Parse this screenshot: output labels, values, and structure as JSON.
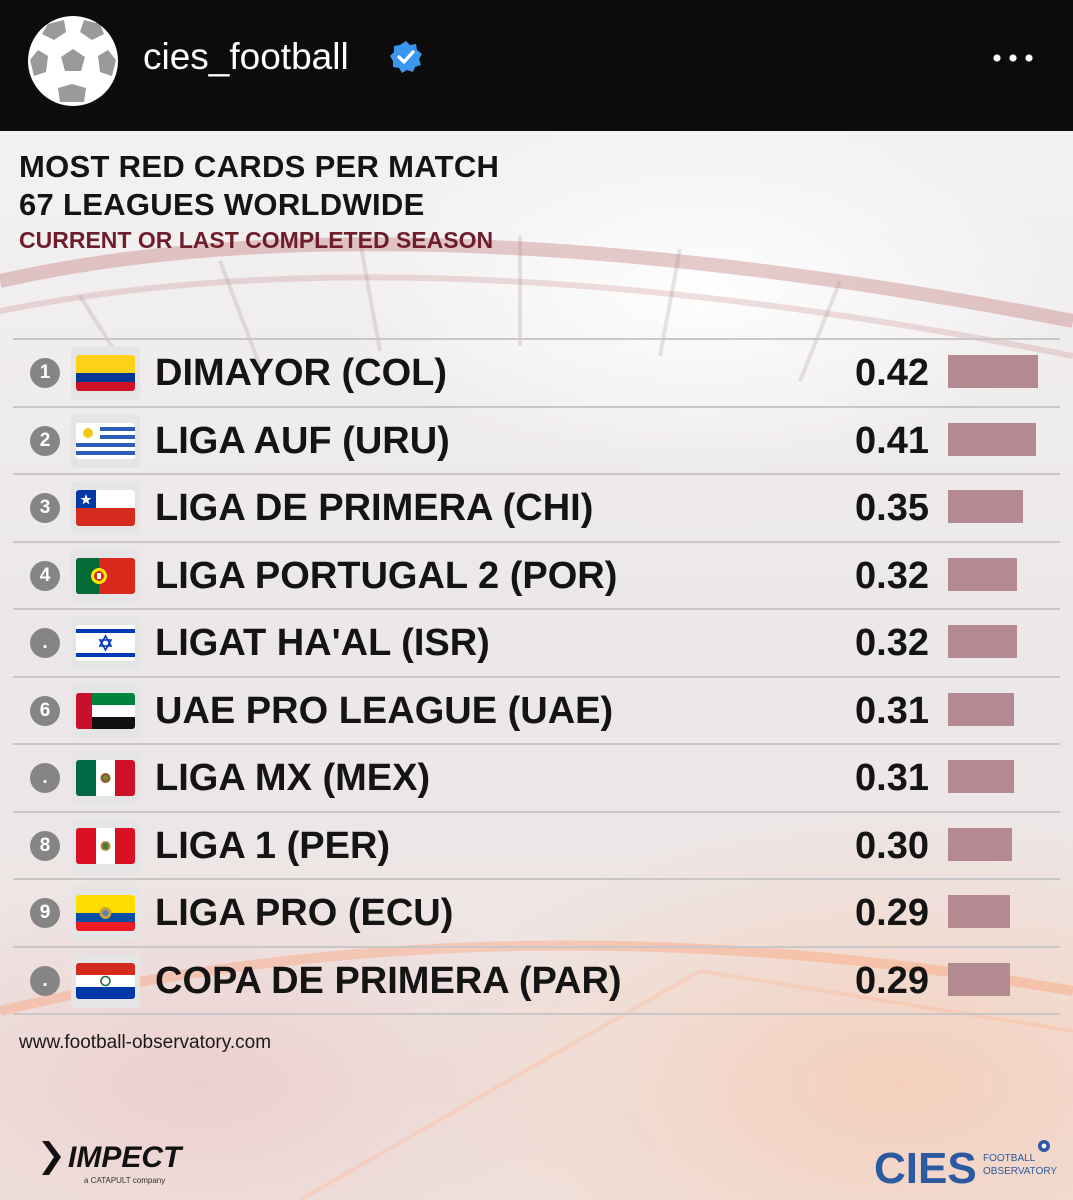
{
  "header": {
    "username": "cies_football",
    "icons": {
      "avatar": "football-avatar-icon",
      "verified": "verified-badge-icon",
      "more": "more-options-icon"
    }
  },
  "post": {
    "title_line1": "MOST RED CARDS PER MATCH",
    "title_line2": "67 LEAGUES WORLDWIDE",
    "subtitle": "CURRENT OR LAST COMPLETED SEASON",
    "website": "www.football-observatory.com",
    "sponsor_logo": "IMPECT",
    "sponsor_tagline": "a CATAPULT company",
    "org_logo": "CIES",
    "org_tagline_1": "FOOTBALL",
    "org_tagline_2": "OBSERVATORY",
    "colors": {
      "title": "#141414",
      "subtitle": "#6e1d2a",
      "bar": "#b48a92",
      "rank_badge": "#858585"
    }
  },
  "chart_data": {
    "type": "bar",
    "title": "MOST RED CARDS PER MATCH",
    "subtitle": "67 LEAGUES WORLDWIDE",
    "xlim": [
      0,
      0.42
    ],
    "rows": [
      {
        "rank": "1",
        "league": "DIMAYOR (COL)",
        "value": 0.42,
        "display": "0.42",
        "flag": "colombia-flag-icon"
      },
      {
        "rank": "2",
        "league": "LIGA AUF (URU)",
        "value": 0.41,
        "display": "0.41",
        "flag": "uruguay-flag-icon"
      },
      {
        "rank": "3",
        "league": "LIGA DE PRIMERA (CHI)",
        "value": 0.35,
        "display": "0.35",
        "flag": "chile-flag-icon"
      },
      {
        "rank": "4",
        "league": "LIGA PORTUGAL 2 (POR)",
        "value": 0.32,
        "display": "0.32",
        "flag": "portugal-flag-icon"
      },
      {
        "rank": ".",
        "league": "LIGAT HA'AL (ISR)",
        "value": 0.32,
        "display": "0.32",
        "flag": "israel-flag-icon"
      },
      {
        "rank": "6",
        "league": "UAE PRO LEAGUE (UAE)",
        "value": 0.31,
        "display": "0.31",
        "flag": "uae-flag-icon"
      },
      {
        "rank": ".",
        "league": "LIGA MX (MEX)",
        "value": 0.31,
        "display": "0.31",
        "flag": "mexico-flag-icon"
      },
      {
        "rank": "8",
        "league": "LIGA 1 (PER)",
        "value": 0.3,
        "display": "0.30",
        "flag": "peru-flag-icon"
      },
      {
        "rank": "9",
        "league": "LIGA PRO (ECU)",
        "value": 0.29,
        "display": "0.29",
        "flag": "ecuador-flag-icon"
      },
      {
        "rank": ".",
        "league": "COPA DE PRIMERA (PAR)",
        "value": 0.29,
        "display": "0.29",
        "flag": "paraguay-flag-icon"
      }
    ]
  }
}
